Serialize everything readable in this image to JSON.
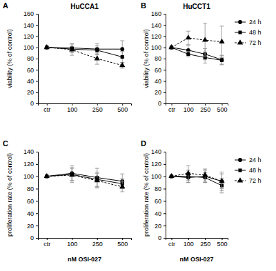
{
  "chart_data": [
    {
      "type": "line",
      "panel_label": "A",
      "title": "HuCCA1",
      "y_label": "viability (% of control)",
      "categories": [
        "ctr",
        "100",
        "250",
        "500"
      ],
      "ylim": [
        0,
        160
      ],
      "yticks": [
        0,
        20,
        40,
        60,
        80,
        100,
        120,
        140,
        160
      ],
      "series": [
        {
          "color": "#000000",
          "marker": "circle",
          "line_style": "solid",
          "values": [
            100,
            99,
            97,
            97
          ],
          "errors": [
            0,
            8,
            10,
            15
          ]
        },
        {
          "color": "#000000",
          "marker": "square",
          "line_style": "solid",
          "values": [
            100,
            97,
            95,
            83
          ],
          "errors": [
            0,
            5,
            8,
            10
          ]
        },
        {
          "color": "#000000",
          "marker": "triangle",
          "line_style": "dashed",
          "values": [
            100,
            96,
            80,
            68
          ],
          "errors": [
            0,
            10,
            10,
            5
          ]
        }
      ]
    },
    {
      "type": "line",
      "panel_label": "B",
      "title": "HuCCT1",
      "y_label": "viability (% of control)",
      "categories": [
        "ctr",
        "100",
        "250",
        "500"
      ],
      "ylim": [
        0,
        160
      ],
      "yticks": [
        0,
        20,
        40,
        60,
        80,
        100,
        120,
        140,
        160
      ],
      "legend": "right",
      "series": [
        {
          "name": "24 h",
          "color": "#000000",
          "marker": "circle",
          "line_style": "solid",
          "values": [
            100,
            95,
            88,
            78
          ],
          "errors": [
            0,
            8,
            10,
            8
          ]
        },
        {
          "name": "48 h",
          "color": "#000000",
          "marker": "square",
          "line_style": "solid",
          "values": [
            100,
            88,
            82,
            77
          ],
          "errors": [
            0,
            5,
            10,
            8
          ]
        },
        {
          "name": "72 h",
          "color": "#000000",
          "marker": "triangle",
          "line_style": "dashed",
          "values": [
            100,
            117,
            113,
            110
          ],
          "errors": [
            0,
            12,
            30,
            28
          ]
        }
      ]
    },
    {
      "type": "line",
      "panel_label": "C",
      "x_label": "nM OSI-027",
      "y_label": "proliferation rate (% of control)",
      "categories": [
        "ctr",
        "100",
        "250",
        "500"
      ],
      "ylim": [
        0,
        140
      ],
      "yticks": [
        0,
        20,
        40,
        60,
        80,
        100,
        120,
        140
      ],
      "series": [
        {
          "color": "#000000",
          "marker": "circle",
          "line_style": "solid",
          "values": [
            100,
            105,
            98,
            92
          ],
          "errors": [
            0,
            12,
            15,
            12
          ]
        },
        {
          "color": "#000000",
          "marker": "square",
          "line_style": "solid",
          "values": [
            100,
            103,
            95,
            88
          ],
          "errors": [
            0,
            10,
            12,
            8
          ]
        },
        {
          "color": "#000000",
          "marker": "triangle",
          "line_style": "dashed",
          "values": [
            100,
            102,
            93,
            83
          ],
          "errors": [
            0,
            12,
            12,
            8
          ]
        }
      ]
    },
    {
      "type": "line",
      "panel_label": "D",
      "x_label": "nM OSI-027",
      "y_label": "proliferation rate (% of control)",
      "categories": [
        "ctr",
        "100",
        "250",
        "500"
      ],
      "ylim": [
        0,
        140
      ],
      "yticks": [
        0,
        20,
        40,
        60,
        80,
        100,
        120,
        140
      ],
      "legend": "right",
      "series": [
        {
          "name": "24 h",
          "color": "#000000",
          "marker": "circle",
          "line_style": "solid",
          "values": [
            100,
            98,
            100,
            92
          ],
          "errors": [
            0,
            8,
            10,
            12
          ]
        },
        {
          "name": "48 h",
          "color": "#000000",
          "marker": "square",
          "line_style": "solid",
          "values": [
            100,
            100,
            98,
            85
          ],
          "errors": [
            0,
            10,
            8,
            12
          ]
        },
        {
          "name": "72 h",
          "color": "#000000",
          "marker": "triangle",
          "line_style": "dashed",
          "values": [
            100,
            105,
            102,
            92
          ],
          "errors": [
            0,
            12,
            10,
            15
          ]
        }
      ]
    }
  ]
}
